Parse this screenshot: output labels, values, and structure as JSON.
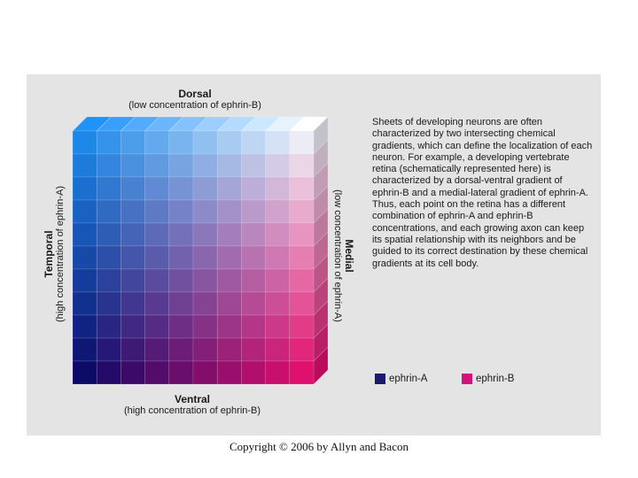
{
  "top_label": {
    "title": "Dorsal",
    "subtitle": "(low concentration of ephrin-B)"
  },
  "bottom_label": {
    "title": "Ventral",
    "subtitle": "(high concentration of ephrin-B)"
  },
  "left_label": {
    "title": "Temporal",
    "subtitle": "(high concentration of ephrin-A)"
  },
  "right_label": {
    "title": "Medial",
    "subtitle": "(low concentration of ephrin-A)"
  },
  "description": "Sheets of developing neurons are often characterized by two intersecting chemical gradients, which can define the localization of each neuron. For example, a developing vertebrate retina (schematically represented here) is characterized by a dorsal-ventral gradient of ephrin-B and a medial-lateral gradient of ephrin-A. Thus, each point on the retina has a different combination of ephrin-A and ephrin-B concentrations, and each growing axon can keep its spatial relationship with its neighbors and be guided to its correct destination by these chemical gradients at its cell body.",
  "legend": [
    {
      "label": "ephrin-A",
      "color": "#1b1a6e"
    },
    {
      "label": "ephrin-B",
      "color": "#d4137a"
    }
  ],
  "copyright": "Copyright © 2006 by Allyn and Bacon",
  "grid": {
    "rows": 11,
    "cols": 10
  },
  "colors": {
    "top_left": "#1e88e8",
    "top_right": "#ececf6",
    "bottom_left": "#0d0a68",
    "bottom_right": "#e0106e"
  }
}
